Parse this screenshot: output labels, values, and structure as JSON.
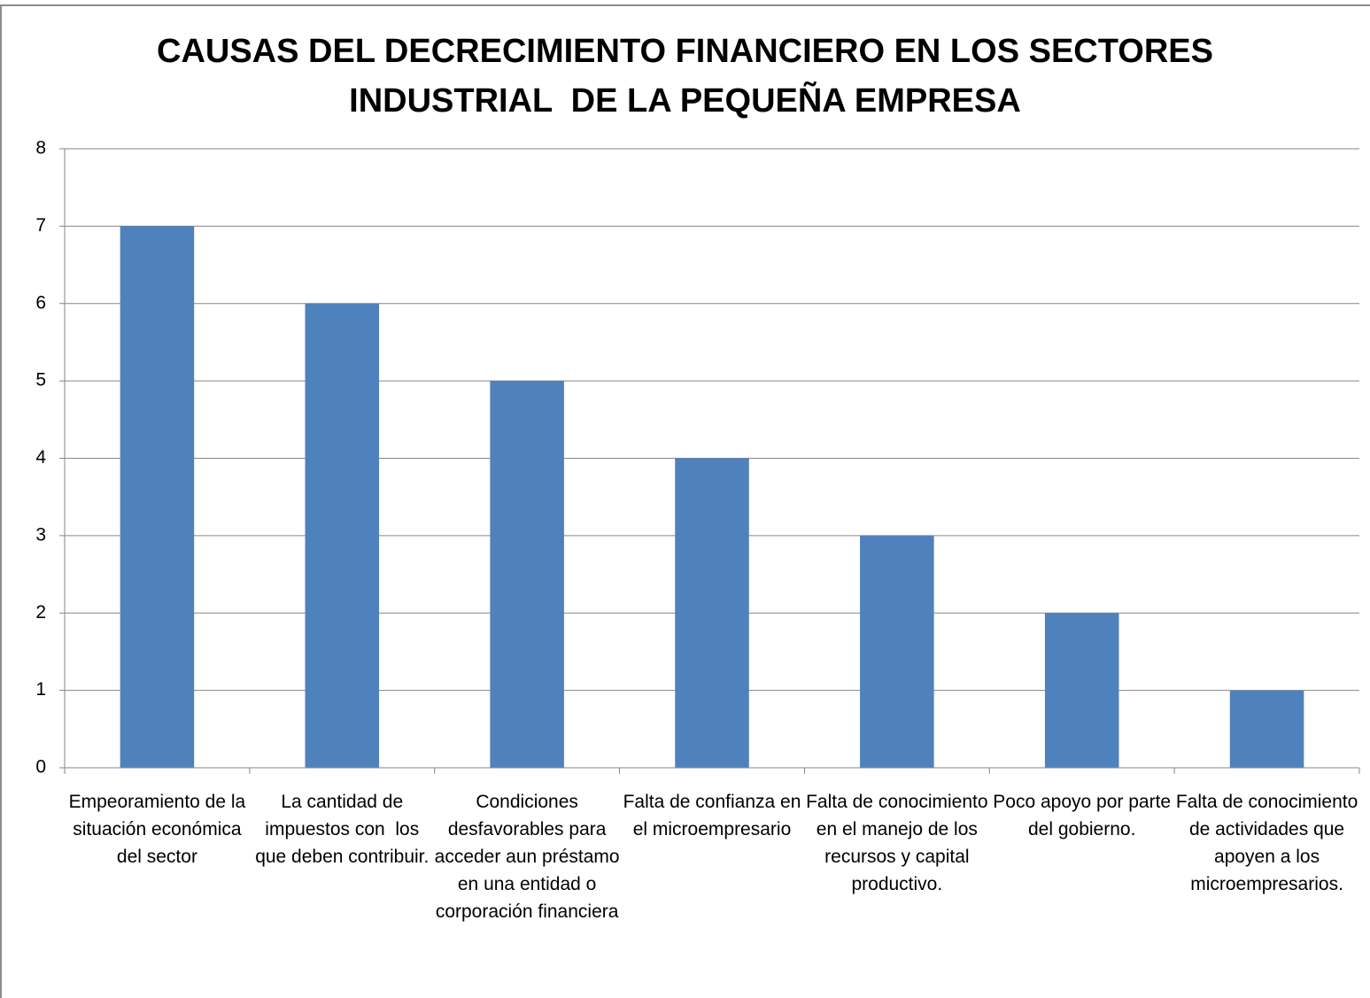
{
  "chart_data": {
    "type": "bar",
    "title": "CAUSAS DEL DECRECIMIENTO FINANCIERO EN LOS SECTORES\nINDUSTRIAL  DE LA PEQUEÑA EMPRESA",
    "categories": [
      "Empeoramiento de la situación económica del sector",
      "La cantidad de impuestos con  los que deben contribuir.",
      "Condiciones desfavorables para acceder aun préstamo en una entidad o corporación financiera",
      "Falta de confianza en el microempresario",
      "Falta de conocimiento en el manejo de los recursos y capital productivo.",
      "Poco apoyo por parte del gobierno.",
      "Falta de conocimiento de actividades que apoyen a los microempresarios."
    ],
    "values": [
      7,
      6,
      5,
      4,
      3,
      2,
      1
    ],
    "color": "#4f81bd",
    "ylim": [
      0,
      8
    ],
    "yticks": [
      0,
      1,
      2,
      3,
      4,
      5,
      6,
      7,
      8
    ],
    "grid": true
  }
}
